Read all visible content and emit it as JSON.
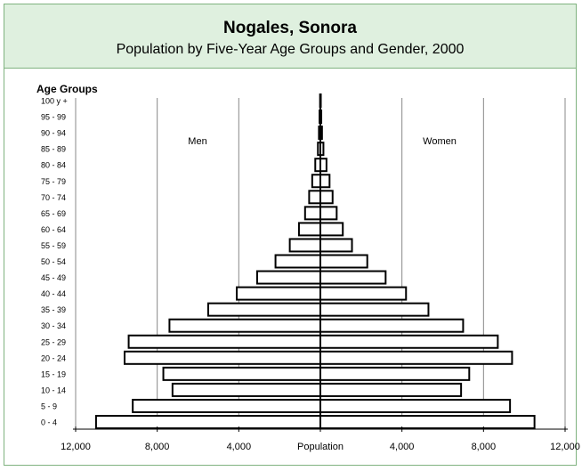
{
  "header": {
    "title": "Nogales, Sonora",
    "subtitle": "Population by Five-Year Age Groups and Gender, 2000"
  },
  "chart_data": {
    "type": "bar",
    "orientation": "horizontal-population-pyramid",
    "title": "Nogales, Sonora",
    "subtitle": "Population by Five-Year Age Groups and Gender, 2000",
    "ylabel": "Age Groups",
    "xlabel": "Population",
    "categories": [
      "0 - 4",
      "5 - 9",
      "10 - 14",
      "15 - 19",
      "20 - 24",
      "25 - 29",
      "30 - 34",
      "35 - 39",
      "40 - 44",
      "45 - 49",
      "50 - 54",
      "55 - 59",
      "60 - 64",
      "65 - 69",
      "70 - 74",
      "75 - 79",
      "80 - 84",
      "85 - 89",
      "90 - 94",
      "95 - 99",
      "100 y +"
    ],
    "series": [
      {
        "name": "Men",
        "side": "left",
        "values": [
          11000,
          9200,
          7250,
          7700,
          9600,
          9400,
          7400,
          5500,
          4100,
          3100,
          2200,
          1500,
          1050,
          750,
          550,
          400,
          250,
          120,
          70,
          40,
          15
        ]
      },
      {
        "name": "Women",
        "side": "right",
        "values": [
          10500,
          9300,
          6900,
          7300,
          9400,
          8700,
          7000,
          5300,
          4200,
          3200,
          2300,
          1550,
          1100,
          800,
          600,
          450,
          300,
          150,
          80,
          45,
          20
        ]
      }
    ],
    "xticks": [
      {
        "value": -12000,
        "label": "12,000"
      },
      {
        "value": -8000,
        "label": "8,000"
      },
      {
        "value": -4000,
        "label": "4,000"
      },
      {
        "value": 0,
        "label": "Population"
      },
      {
        "value": 4000,
        "label": "4,000"
      },
      {
        "value": 8000,
        "label": "8,000"
      },
      {
        "value": 12000,
        "label": "12,000"
      }
    ],
    "xlim": [
      -12000,
      12000
    ],
    "grid": true,
    "bar_fill": "#ffffff",
    "bar_stroke": "#000000",
    "gridline_color": "#888888"
  }
}
